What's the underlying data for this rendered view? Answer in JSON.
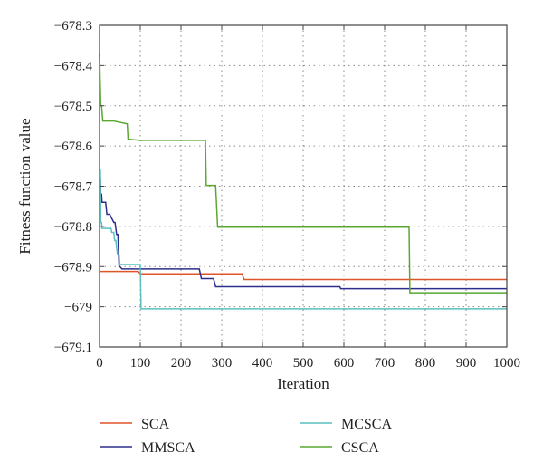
{
  "chart_data": {
    "type": "line",
    "title": "",
    "xlabel": "Iteration",
    "ylabel": "Fitness function value",
    "xlim": [
      0,
      1000
    ],
    "ylim": [
      -679.1,
      -678.3
    ],
    "x_ticks": [
      0,
      100,
      200,
      300,
      400,
      500,
      600,
      700,
      800,
      900,
      1000
    ],
    "y_ticks": [
      -678.3,
      -678.4,
      -678.5,
      -678.6,
      -678.7,
      -678.8,
      -678.9,
      -679,
      -679.1
    ],
    "x_tick_labels": [
      "0",
      "100",
      "200",
      "300",
      "400",
      "500",
      "600",
      "700",
      "800",
      "900",
      "1000"
    ],
    "y_tick_labels": [
      "−678.3",
      "−678.4",
      "−678.5",
      "−678.6",
      "−678.7",
      "−678.8",
      "−678.9",
      "−679",
      "−679.1"
    ],
    "grid": true,
    "legend_position": "below",
    "series": [
      {
        "name": "SCA",
        "color": "#e0542a",
        "x": [
          0,
          95,
          100,
          350,
          355,
          1000
        ],
        "y": [
          -678.912,
          -678.912,
          -678.918,
          -678.918,
          -678.932,
          -678.932
        ]
      },
      {
        "name": "MMSCA",
        "color": "#2e2e8c",
        "x": [
          0,
          2,
          3,
          5,
          6,
          15,
          18,
          25,
          35,
          38,
          42,
          45,
          48,
          50,
          55,
          245,
          250,
          280,
          285,
          590,
          592,
          1000
        ],
        "y": [
          -678.68,
          -678.68,
          -678.72,
          -678.72,
          -678.74,
          -678.74,
          -678.77,
          -678.77,
          -678.79,
          -678.79,
          -678.82,
          -678.82,
          -678.9,
          -678.9,
          -678.906,
          -678.906,
          -678.93,
          -678.93,
          -678.95,
          -678.95,
          -678.955,
          -678.955
        ]
      },
      {
        "name": "MCSCA",
        "color": "#5bbfc0",
        "x": [
          0,
          2,
          3,
          5,
          6,
          28,
          30,
          35,
          37,
          40,
          44,
          48,
          50,
          100,
          102,
          1000
        ],
        "y": [
          -678.66,
          -678.66,
          -678.79,
          -678.79,
          -678.805,
          -678.805,
          -678.815,
          -678.815,
          -678.835,
          -678.835,
          -678.87,
          -678.87,
          -678.895,
          -678.895,
          -679.005,
          -679.005
        ]
      },
      {
        "name": "CSCA",
        "color": "#5aa832",
        "x": [
          0,
          3,
          5,
          8,
          35,
          68,
          70,
          100,
          260,
          262,
          285,
          290,
          760,
          762,
          1000
        ],
        "y": [
          -678.37,
          -678.5,
          -678.5,
          -678.538,
          -678.538,
          -678.545,
          -678.583,
          -678.586,
          -678.586,
          -678.698,
          -678.698,
          -678.802,
          -678.802,
          -678.965,
          -678.965
        ]
      }
    ]
  }
}
